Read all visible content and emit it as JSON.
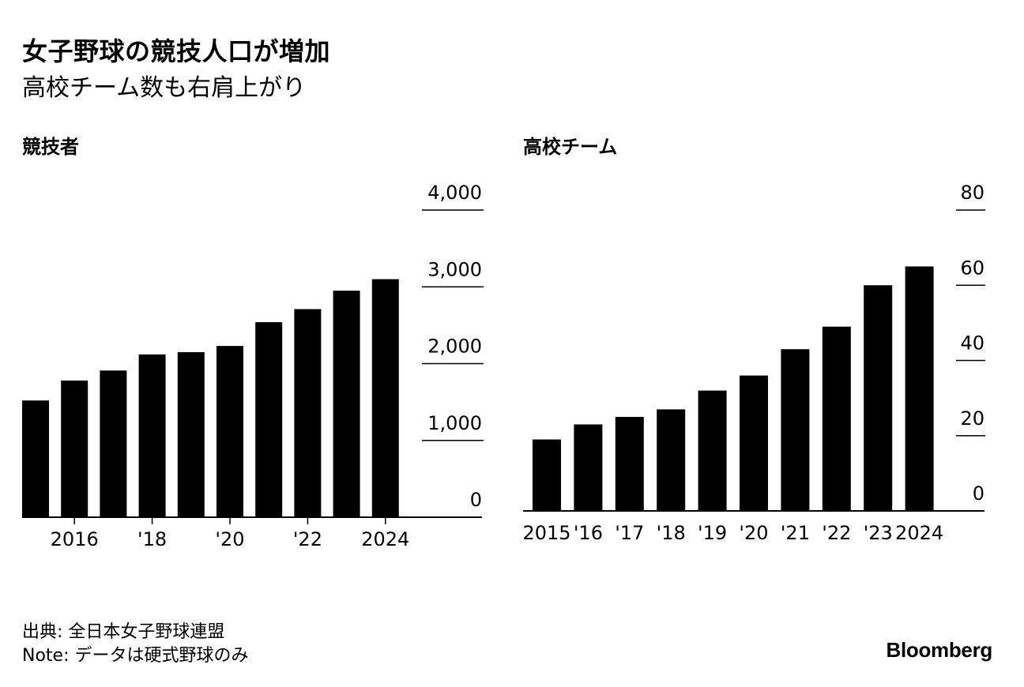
{
  "title": "女子野球の競技人口が増加",
  "subtitle": "高校チーム数も右肩上がり",
  "chart_data": [
    {
      "type": "bar",
      "title": "競技者",
      "categories": [
        "2015",
        "2016",
        "2017",
        "2018",
        "2019",
        "2020",
        "2021",
        "2022",
        "2023",
        "2024"
      ],
      "x_tick_labels": [
        {
          "category": "2016",
          "label": "2016"
        },
        {
          "category": "2018",
          "label": "'18"
        },
        {
          "category": "2020",
          "label": "'20"
        },
        {
          "category": "2022",
          "label": "'22"
        },
        {
          "category": "2024",
          "label": "2024"
        }
      ],
      "values": [
        1520,
        1780,
        1910,
        2120,
        2150,
        2230,
        2540,
        2710,
        2950,
        3100
      ],
      "ylim": [
        0,
        4000
      ],
      "y_ticks": [
        0,
        1000,
        2000,
        3000,
        4000
      ],
      "y_tick_labels": [
        "0",
        "1,000",
        "2,000",
        "3,000",
        "4,000"
      ],
      "color": "#000000"
    },
    {
      "type": "bar",
      "title": "高校チーム",
      "categories": [
        "2015",
        "2016",
        "2017",
        "2018",
        "2019",
        "2020",
        "2021",
        "2022",
        "2023",
        "2024"
      ],
      "x_tick_labels": [
        {
          "category": "2015",
          "label": "2015"
        },
        {
          "category": "2016",
          "label": "'16"
        },
        {
          "category": "2017",
          "label": "'17"
        },
        {
          "category": "2018",
          "label": "'18"
        },
        {
          "category": "2019",
          "label": "'19"
        },
        {
          "category": "2020",
          "label": "'20"
        },
        {
          "category": "2021",
          "label": "'21"
        },
        {
          "category": "2022",
          "label": "'22"
        },
        {
          "category": "2023",
          "label": "'23"
        },
        {
          "category": "2024",
          "label": "2024"
        }
      ],
      "values": [
        19,
        23,
        25,
        27,
        32,
        36,
        43,
        49,
        60,
        65
      ],
      "ylim": [
        0,
        80
      ],
      "y_ticks": [
        0,
        20,
        40,
        60,
        80
      ],
      "y_tick_labels": [
        "0",
        "20",
        "40",
        "60",
        "80"
      ],
      "color": "#000000"
    }
  ],
  "footer": {
    "source": "出典: 全日本女子野球連盟",
    "note": "Note: データは硬式野球のみ",
    "brand": "Bloomberg"
  }
}
